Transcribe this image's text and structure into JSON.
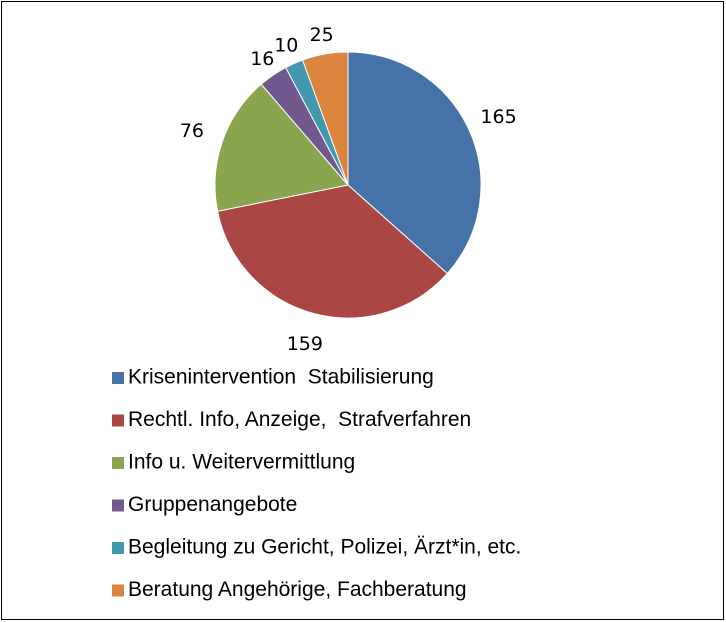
{
  "chart_data": {
    "type": "pie",
    "categories": [
      "Krisenintervention  Stabilisierung",
      "Rechtl. Info, Anzeige,  Strafverfahren",
      "Info u. Weitervermittlung",
      "Gruppenangebote",
      "Begleitung zu Gericht, Polizei, Ärzt*in, etc.",
      "Beratung Angehörige, Fachberatung"
    ],
    "values": [
      165,
      159,
      76,
      16,
      10,
      25
    ],
    "colors": [
      "#4572a7",
      "#aa4643",
      "#89a54e",
      "#71588f",
      "#4198af",
      "#db843d"
    ],
    "legend": "bottom"
  }
}
